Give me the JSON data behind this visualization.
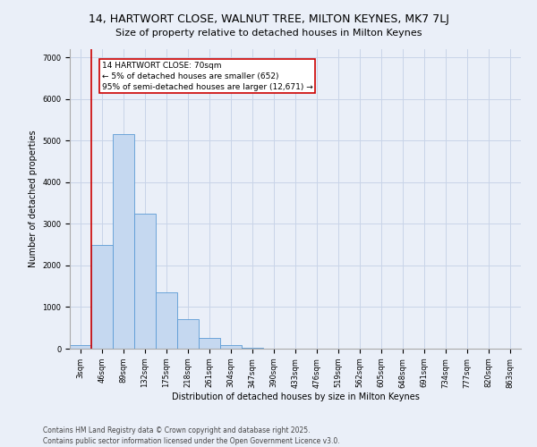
{
  "title1": "14, HARTWORT CLOSE, WALNUT TREE, MILTON KEYNES, MK7 7LJ",
  "title2": "Size of property relative to detached houses in Milton Keynes",
  "xlabel": "Distribution of detached houses by size in Milton Keynes",
  "ylabel": "Number of detached properties",
  "categories": [
    "3sqm",
    "46sqm",
    "89sqm",
    "132sqm",
    "175sqm",
    "218sqm",
    "261sqm",
    "304sqm",
    "347sqm",
    "390sqm",
    "433sqm",
    "476sqm",
    "519sqm",
    "562sqm",
    "605sqm",
    "648sqm",
    "691sqm",
    "734sqm",
    "777sqm",
    "820sqm",
    "863sqm"
  ],
  "values": [
    80,
    2500,
    5150,
    3250,
    1350,
    700,
    250,
    80,
    30,
    10,
    5,
    2,
    1,
    1,
    0,
    0,
    0,
    0,
    0,
    0,
    0
  ],
  "bar_color": "#c5d8f0",
  "bar_edge_color": "#5b9bd5",
  "vline_color": "#cc0000",
  "annotation_box_text": "14 HARTWORT CLOSE: 70sqm\n← 5% of detached houses are smaller (652)\n95% of semi-detached houses are larger (12,671) →",
  "annotation_box_color": "#cc0000",
  "ylim_max": 7200,
  "yticks": [
    0,
    1000,
    2000,
    3000,
    4000,
    5000,
    6000,
    7000
  ],
  "grid_color": "#c8d4e8",
  "background_color": "#eaeff8",
  "footnote1": "Contains HM Land Registry data © Crown copyright and database right 2025.",
  "footnote2": "Contains public sector information licensed under the Open Government Licence v3.0.",
  "title_fontsize": 9,
  "subtitle_fontsize": 8,
  "tick_fontsize": 6,
  "label_fontsize": 7,
  "annot_fontsize": 6.5,
  "footnote_fontsize": 5.5
}
